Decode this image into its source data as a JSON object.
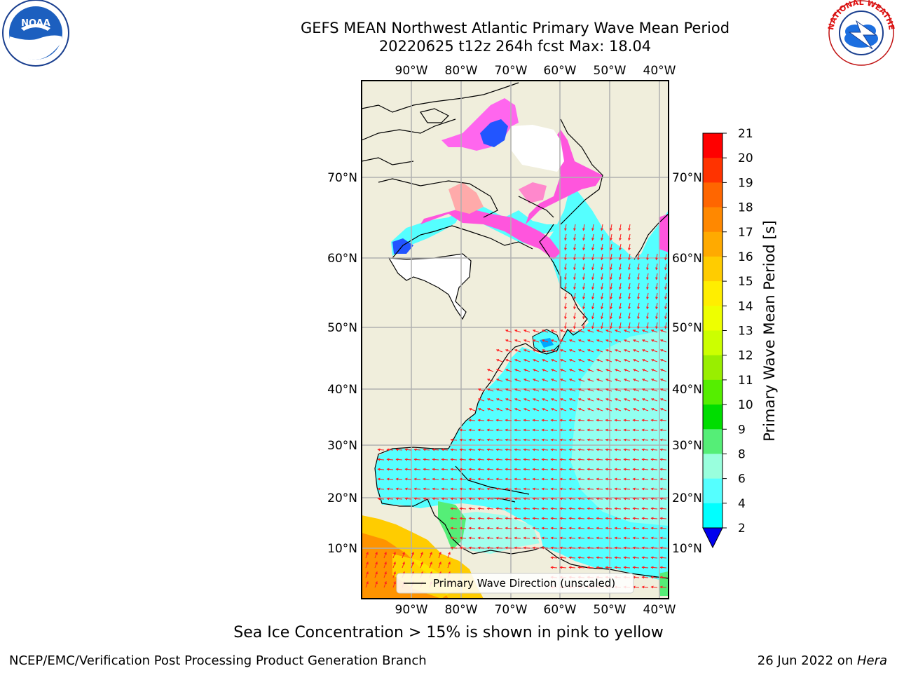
{
  "title": {
    "line1": "GEFS MEAN Northwest Atlantic Primary Wave Mean Period",
    "line2": "20220625 t12z 264h fcst   Max: 18.04"
  },
  "map": {
    "lon_labels": [
      "90°W",
      "80°W",
      "70°W",
      "60°W",
      "50°W",
      "40°W"
    ],
    "lat_labels": [
      "70°N",
      "60°N",
      "50°N",
      "40°N",
      "30°N",
      "20°N",
      "10°N"
    ],
    "legend_label": "Primary Wave Direction (unscaled)"
  },
  "colorbar": {
    "label": "Primary Wave Mean Period [s]",
    "ticks": [
      "21",
      "20",
      "19",
      "18",
      "17",
      "16",
      "15",
      "14",
      "13",
      "12",
      "11",
      "10",
      "9",
      "8",
      "6",
      "4",
      "2"
    ],
    "colors": [
      "#ff0000",
      "#ff3300",
      "#ff6600",
      "#ff8800",
      "#ffaa00",
      "#ffcc00",
      "#ffee00",
      "#eeff00",
      "#ccff00",
      "#99ee00",
      "#55ee00",
      "#00dd00",
      "#55ee77",
      "#99ffdd",
      "#55ffff",
      "#00ffff",
      "#00ddff",
      "#0077ff"
    ],
    "under_color": "#0000ee"
  },
  "logos": {
    "noaa_text": "NOAA",
    "nws_text": "NATIONAL WEATHER SERVICE"
  },
  "caption": "Sea Ice Concentration > 15% is shown in pink to yellow",
  "footer": {
    "credit": "NCEP/EMC/Verification Post Processing Product Generation Branch",
    "date": "26 Jun 2022 on ",
    "host": "Hera"
  }
}
